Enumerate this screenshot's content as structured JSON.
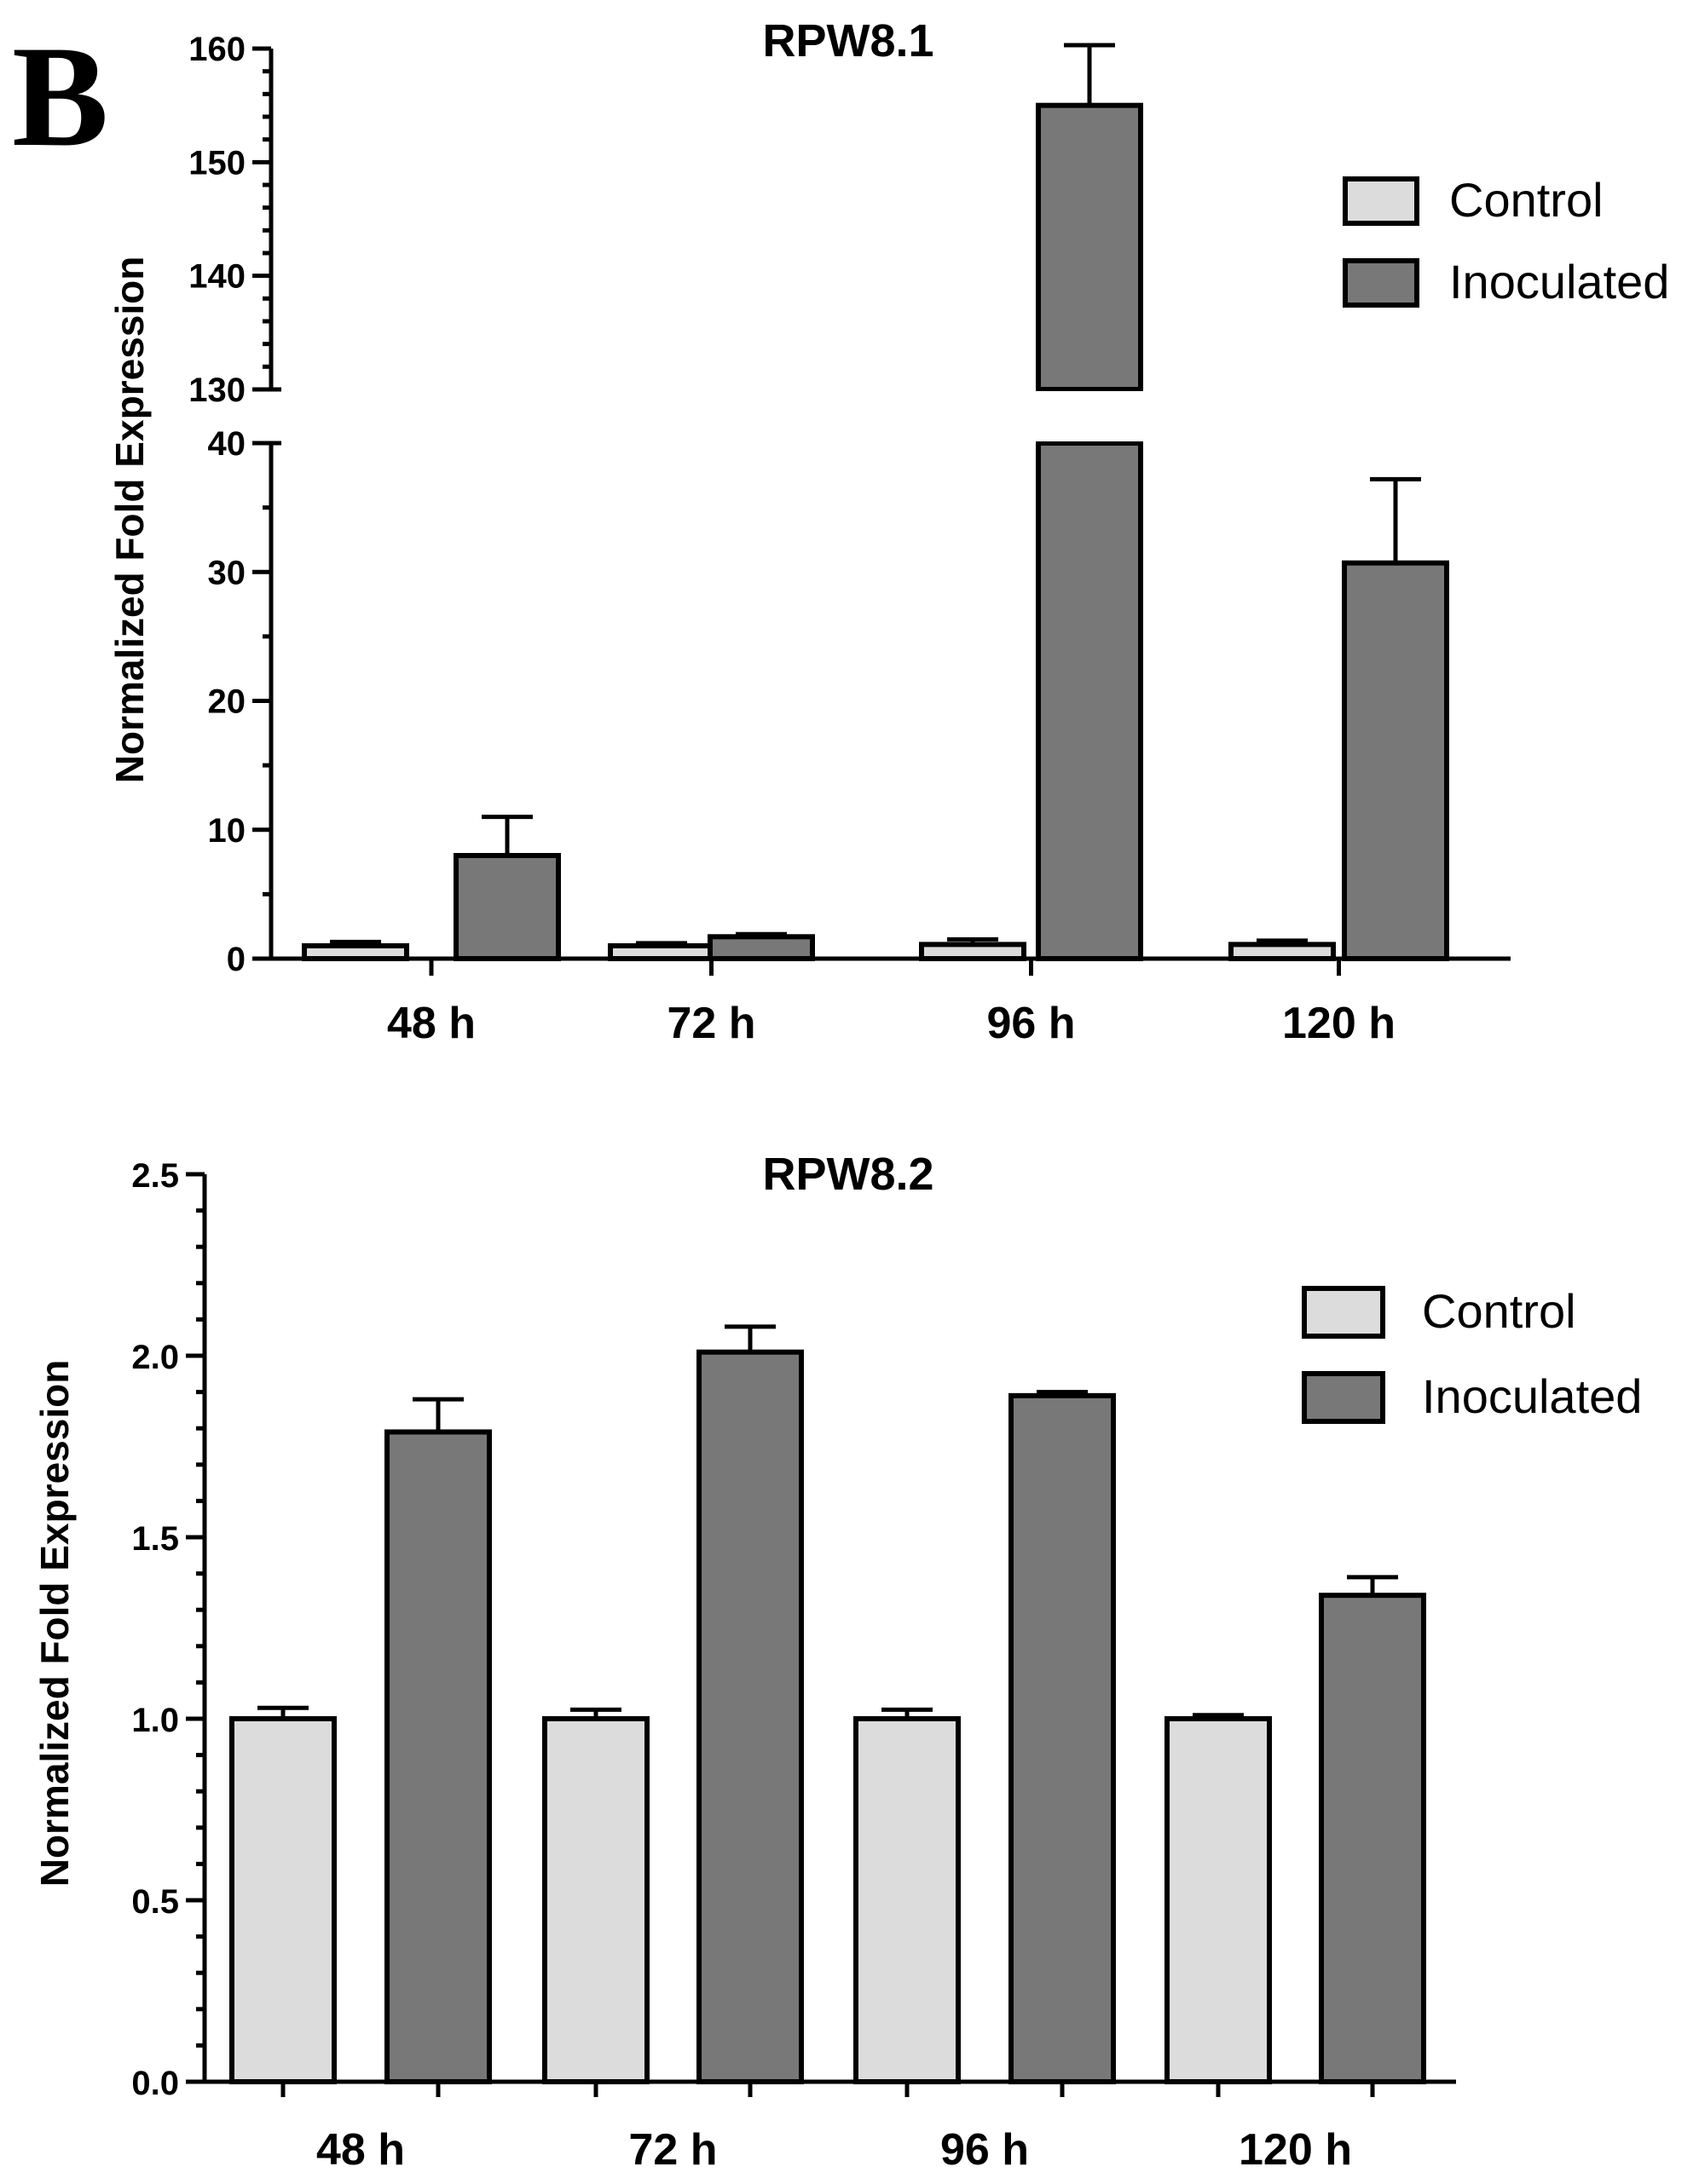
{
  "panel_label": "B",
  "chart_data": [
    {
      "type": "bar",
      "title": "RPW8.1",
      "ylabel": "Normalized Fold Expression",
      "xlabel": "",
      "categories": [
        "48 h",
        "72 h",
        "96 h",
        "120 h"
      ],
      "series": [
        {
          "name": "Control",
          "color": "#dcdcdc",
          "values": [
            1.0,
            1.0,
            1.1,
            1.1
          ],
          "errors": [
            0.3,
            0.2,
            0.4,
            0.3
          ]
        },
        {
          "name": "Inoculated",
          "color": "#787878",
          "values": [
            8.0,
            1.7,
            155.0,
            30.7
          ],
          "errors": [
            3.0,
            0.2,
            5.3,
            6.5
          ]
        }
      ],
      "broken_axis": {
        "lower": [
          0,
          40
        ],
        "upper": [
          130,
          160
        ]
      },
      "yticks_lower": [
        "0",
        "10",
        "20",
        "30",
        "40"
      ],
      "yticks_upper": [
        "130",
        "140",
        "150",
        "160"
      ],
      "legend_position": "top-right",
      "grid": false
    },
    {
      "type": "bar",
      "title": "RPW8.2",
      "ylabel": "Normalized Fold Expression",
      "xlabel": "",
      "categories": [
        "48 h",
        "72 h",
        "96 h",
        "120 h"
      ],
      "series": [
        {
          "name": "Control",
          "color": "#dcdcdc",
          "values": [
            1.0,
            1.0,
            1.0,
            1.0
          ],
          "errors": [
            0.03,
            0.025,
            0.025,
            0.01
          ]
        },
        {
          "name": "Inoculated",
          "color": "#787878",
          "values": [
            1.79,
            2.01,
            1.89,
            1.34
          ],
          "errors": [
            0.09,
            0.07,
            0.01,
            0.05
          ]
        }
      ],
      "ylim": [
        0,
        2.5
      ],
      "yticks": [
        "0.0",
        "0.5",
        "1.0",
        "1.5",
        "2.0",
        "2.5"
      ],
      "legend_position": "top-right",
      "grid": false
    }
  ]
}
